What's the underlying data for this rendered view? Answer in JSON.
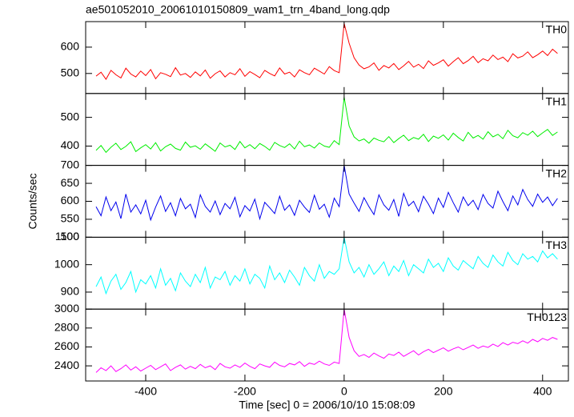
{
  "chart_data": [
    {
      "type": "line",
      "title": "ae501052010_20061010150809_wam1_trn_4band_long.qdp",
      "label": "TH0",
      "color": "#ff0000",
      "xlim": [
        -521,
        452
      ],
      "ylim": [
        424,
        697
      ],
      "yticks": [
        500,
        600
      ],
      "x": [
        -500,
        -490,
        -480,
        -470,
        -460,
        -450,
        -440,
        -430,
        -420,
        -410,
        -400,
        -390,
        -380,
        -370,
        -360,
        -350,
        -340,
        -330,
        -320,
        -310,
        -300,
        -290,
        -280,
        -270,
        -260,
        -250,
        -240,
        -230,
        -220,
        -210,
        -200,
        -190,
        -180,
        -170,
        -160,
        -150,
        -140,
        -130,
        -120,
        -110,
        -100,
        -90,
        -80,
        -70,
        -60,
        -50,
        -40,
        -30,
        -20,
        -10,
        0,
        10,
        20,
        30,
        40,
        50,
        60,
        70,
        80,
        90,
        100,
        110,
        120,
        130,
        140,
        150,
        160,
        170,
        180,
        190,
        200,
        210,
        220,
        230,
        240,
        250,
        260,
        270,
        280,
        290,
        300,
        310,
        320,
        330,
        340,
        350,
        360,
        370,
        380,
        390,
        400,
        410,
        420,
        430
      ],
      "values": [
        490,
        505,
        478,
        512,
        495,
        483,
        520,
        498,
        487,
        509,
        492,
        515,
        480,
        503,
        497,
        488,
        522,
        494,
        500,
        485,
        506,
        491,
        513,
        482,
        499,
        510,
        487,
        503,
        495,
        518,
        489,
        507,
        496,
        484,
        512,
        500,
        491,
        521,
        498,
        505,
        487,
        514,
        503,
        495,
        520,
        509,
        498,
        526,
        511,
        503,
        690,
        615,
        560,
        532,
        518,
        525,
        540,
        512,
        530,
        521,
        538,
        515,
        529,
        546,
        524,
        535,
        519,
        548,
        531,
        540,
        552,
        528,
        545,
        560,
        537,
        549,
        565,
        541,
        556,
        548,
        570,
        553,
        562,
        545,
        575,
        559,
        566,
        582,
        560,
        571,
        585,
        568,
        592,
        576
      ]
    },
    {
      "type": "line",
      "label": "TH1",
      "color": "#00ee00",
      "xlim": [
        -521,
        452
      ],
      "ylim": [
        333,
        583
      ],
      "yticks": [
        400,
        500
      ],
      "x": [
        -500,
        -490,
        -480,
        -470,
        -460,
        -450,
        -440,
        -430,
        -420,
        -410,
        -400,
        -390,
        -380,
        -370,
        -360,
        -350,
        -340,
        -330,
        -320,
        -310,
        -300,
        -290,
        -280,
        -270,
        -260,
        -250,
        -240,
        -230,
        -220,
        -210,
        -200,
        -190,
        -180,
        -170,
        -160,
        -150,
        -140,
        -130,
        -120,
        -110,
        -100,
        -90,
        -80,
        -70,
        -60,
        -50,
        -40,
        -30,
        -20,
        -10,
        0,
        10,
        20,
        30,
        40,
        50,
        60,
        70,
        80,
        90,
        100,
        110,
        120,
        130,
        140,
        150,
        160,
        170,
        180,
        190,
        200,
        210,
        220,
        230,
        240,
        250,
        260,
        270,
        280,
        290,
        300,
        310,
        320,
        330,
        340,
        350,
        360,
        370,
        380,
        390,
        400,
        410,
        420,
        430
      ],
      "values": [
        385,
        402,
        378,
        396,
        410,
        388,
        399,
        415,
        381,
        394,
        405,
        390,
        412,
        383,
        398,
        407,
        392,
        386,
        414,
        396,
        401,
        389,
        408,
        395,
        382,
        411,
        397,
        403,
        388,
        416,
        394,
        405,
        391,
        409,
        399,
        386,
        413,
        402,
        395,
        408,
        390,
        417,
        398,
        404,
        393,
        411,
        400,
        396,
        419,
        405,
        570,
        470,
        432,
        418,
        425,
        410,
        428,
        420,
        415,
        433,
        412,
        426,
        438,
        419,
        430,
        424,
        441,
        416,
        435,
        427,
        439,
        421,
        445,
        430,
        418,
        448,
        428,
        437,
        424,
        450,
        432,
        441,
        426,
        455,
        436,
        429,
        447,
        438,
        452,
        433,
        446,
        458,
        437,
        449
      ]
    },
    {
      "type": "line",
      "label": "TH2",
      "ylabel": "Counts/sec",
      "color": "#0000ee",
      "xlim": [
        -521,
        452
      ],
      "ylim": [
        500,
        700
      ],
      "yticks": [
        500,
        550,
        600,
        650,
        700
      ],
      "x": [
        -500,
        -490,
        -480,
        -470,
        -460,
        -450,
        -440,
        -430,
        -420,
        -410,
        -400,
        -390,
        -380,
        -370,
        -360,
        -350,
        -340,
        -330,
        -320,
        -310,
        -300,
        -290,
        -280,
        -270,
        -260,
        -250,
        -240,
        -230,
        -220,
        -210,
        -200,
        -190,
        -180,
        -170,
        -160,
        -150,
        -140,
        -130,
        -120,
        -110,
        -100,
        -90,
        -80,
        -70,
        -60,
        -50,
        -40,
        -30,
        -20,
        -10,
        0,
        10,
        20,
        30,
        40,
        50,
        60,
        70,
        80,
        90,
        100,
        110,
        120,
        130,
        140,
        150,
        160,
        170,
        180,
        190,
        200,
        210,
        220,
        230,
        240,
        250,
        260,
        270,
        280,
        290,
        300,
        310,
        320,
        330,
        340,
        350,
        360,
        370,
        380,
        390,
        400,
        410,
        420,
        430
      ],
      "values": [
        585,
        560,
        612,
        574,
        598,
        552,
        620,
        570,
        590,
        565,
        603,
        548,
        584,
        615,
        572,
        596,
        560,
        608,
        579,
        592,
        555,
        618,
        586,
        570,
        601,
        563,
        594,
        579,
        611,
        557,
        588,
        573,
        606,
        551,
        597,
        582,
        566,
        614,
        575,
        590,
        561,
        603,
        584,
        569,
        617,
        578,
        592,
        556,
        609,
        585,
        700,
        620,
        595,
        572,
        610,
        585,
        563,
        618,
        590,
        575,
        605,
        558,
        622,
        587,
        600,
        571,
        614,
        592,
        566,
        609,
        583,
        625,
        596,
        570,
        612,
        588,
        603,
        577,
        619,
        594,
        581,
        628,
        599,
        574,
        615,
        590,
        633,
        605,
        586,
        620,
        597,
        612,
        588,
        608
      ]
    },
    {
      "type": "line",
      "label": "TH3",
      "color": "#00ffff",
      "xlim": [
        -521,
        452
      ],
      "ylim": [
        838,
        1100
      ],
      "yticks": [
        900,
        1000,
        1100
      ],
      "x": [
        -500,
        -490,
        -480,
        -470,
        -460,
        -450,
        -440,
        -430,
        -420,
        -410,
        -400,
        -390,
        -380,
        -370,
        -360,
        -350,
        -340,
        -330,
        -320,
        -310,
        -300,
        -290,
        -280,
        -270,
        -260,
        -250,
        -240,
        -230,
        -220,
        -210,
        -200,
        -190,
        -180,
        -170,
        -160,
        -150,
        -140,
        -130,
        -120,
        -110,
        -100,
        -90,
        -80,
        -70,
        -60,
        -50,
        -40,
        -30,
        -20,
        -10,
        0,
        10,
        20,
        30,
        40,
        50,
        60,
        70,
        80,
        90,
        100,
        110,
        120,
        130,
        140,
        150,
        160,
        170,
        180,
        190,
        200,
        210,
        220,
        230,
        240,
        250,
        260,
        270,
        280,
        290,
        300,
        310,
        320,
        330,
        340,
        350,
        360,
        370,
        380,
        390,
        400,
        410,
        420,
        430
      ],
      "values": [
        920,
        955,
        895,
        940,
        965,
        910,
        935,
        975,
        900,
        945,
        930,
        960,
        915,
        985,
        925,
        950,
        905,
        970,
        940,
        920,
        965,
        935,
        990,
        915,
        955,
        945,
        975,
        925,
        960,
        940,
        985,
        930,
        965,
        950,
        915,
        995,
        945,
        970,
        935,
        980,
        955,
        925,
        990,
        960,
        940,
        1000,
        950,
        975,
        965,
        985,
        1100,
        1010,
        970,
        990,
        955,
        1000,
        965,
        985,
        1010,
        960,
        995,
        975,
        1015,
        960,
        1000,
        985,
        970,
        1020,
        990,
        1005,
        975,
        1025,
        995,
        980,
        1015,
        1000,
        985,
        1030,
        1005,
        990,
        1035,
        1010,
        995,
        1045,
        1015,
        1000,
        1040,
        1020,
        1030,
        1010,
        1050,
        1025,
        1040,
        1020
      ]
    },
    {
      "type": "line",
      "label": "TH0123",
      "color": "#ff00ff",
      "xlabel": "Time [sec] 0 = 2006/10/10 15:08:09",
      "xlim": [
        -521,
        452
      ],
      "xticks": [
        -400,
        -200,
        0,
        200,
        400
      ],
      "ylim": [
        2240,
        3000
      ],
      "yticks": [
        2400,
        2600,
        2800,
        3000
      ],
      "x": [
        -500,
        -490,
        -480,
        -470,
        -460,
        -450,
        -440,
        -430,
        -420,
        -410,
        -400,
        -390,
        -380,
        -370,
        -360,
        -350,
        -340,
        -330,
        -320,
        -310,
        -300,
        -290,
        -280,
        -270,
        -260,
        -250,
        -240,
        -230,
        -220,
        -210,
        -200,
        -190,
        -180,
        -170,
        -160,
        -150,
        -140,
        -130,
        -120,
        -110,
        -100,
        -90,
        -80,
        -70,
        -60,
        -50,
        -40,
        -30,
        -20,
        -10,
        0,
        10,
        20,
        30,
        40,
        50,
        60,
        70,
        80,
        90,
        100,
        110,
        120,
        130,
        140,
        150,
        160,
        170,
        180,
        190,
        200,
        210,
        220,
        230,
        240,
        250,
        260,
        270,
        280,
        290,
        300,
        310,
        320,
        330,
        340,
        350,
        360,
        370,
        380,
        390,
        400,
        410,
        420,
        430
      ],
      "values": [
        2330,
        2380,
        2350,
        2400,
        2340,
        2370,
        2410,
        2355,
        2390,
        2345,
        2375,
        2405,
        2360,
        2390,
        2420,
        2350,
        2385,
        2410,
        2365,
        2395,
        2370,
        2415,
        2380,
        2400,
        2360,
        2425,
        2390,
        2375,
        2410,
        2385,
        2430,
        2395,
        2370,
        2420,
        2400,
        2385,
        2440,
        2405,
        2390,
        2425,
        2410,
        2445,
        2395,
        2430,
        2415,
        2450,
        2420,
        2405,
        2440,
        2425,
        3000,
        2700,
        2560,
        2500,
        2520,
        2490,
        2535,
        2505,
        2480,
        2525,
        2510,
        2545,
        2500,
        2530,
        2560,
        2515,
        2550,
        2575,
        2540,
        2565,
        2590,
        2555,
        2580,
        2600,
        2570,
        2595,
        2620,
        2585,
        2610,
        2595,
        2630,
        2605,
        2645,
        2620,
        2650,
        2635,
        2665,
        2640,
        2680,
        2655,
        2690,
        2670,
        2700,
        2680
      ]
    }
  ]
}
